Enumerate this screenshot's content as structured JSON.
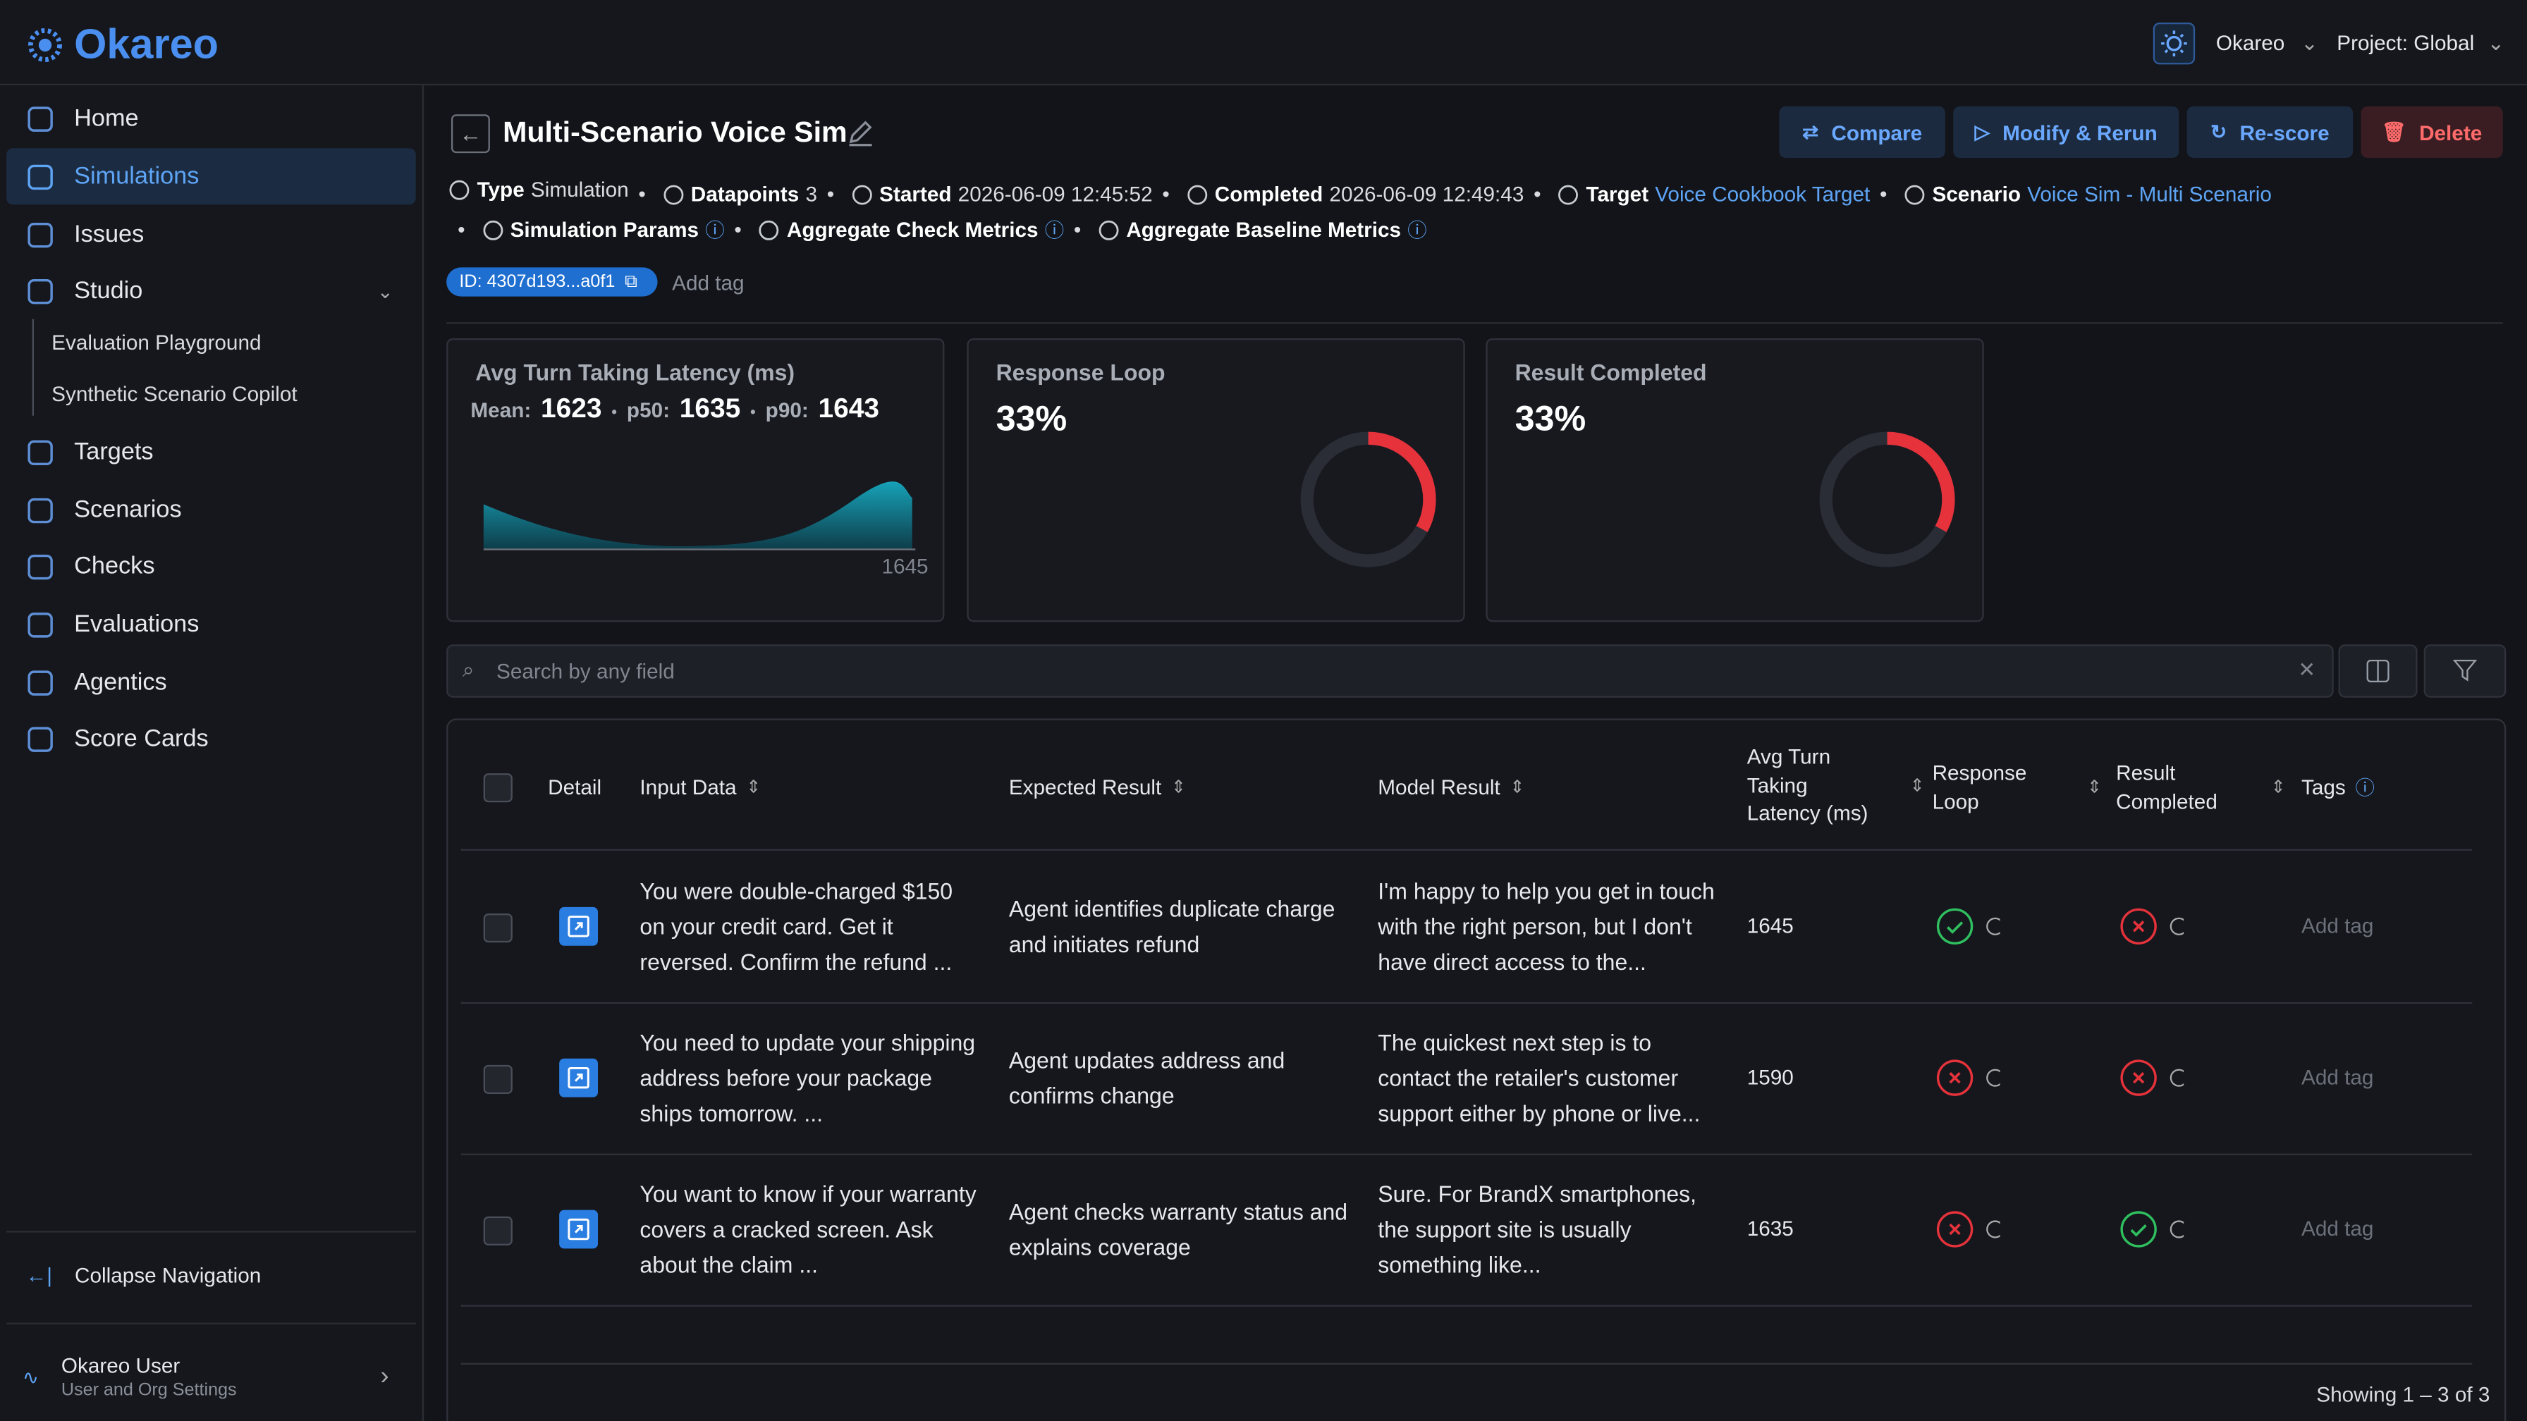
{
  "app": {
    "brand": "Okareo",
    "user_menu": "Okareo",
    "project": "Project: Global"
  },
  "nav": {
    "items": [
      "Home",
      "Simulations",
      "Issues",
      "Studio",
      "Evaluation Playground",
      "Synthetic Scenario Copilot",
      "Targets",
      "Scenarios",
      "Checks",
      "Evaluations",
      "Agentics",
      "Score Cards"
    ],
    "active": "Simulations",
    "collapse": "Collapse Navigation",
    "user_name": "Okareo User",
    "user_sub": "User and Org Settings"
  },
  "header": {
    "title": "Multi-Scenario Voice Sim",
    "actions": [
      "Compare",
      "Modify & Rerun",
      "Re-score",
      "Delete"
    ]
  },
  "meta": [
    {
      "label": "Type",
      "value": "Simulation"
    },
    {
      "label": "Datapoints",
      "value": 3
    },
    {
      "label": "Started",
      "value": "2026-06-09 12:45:52"
    },
    {
      "label": "Completed",
      "value": "2026-06-09 12:49:43"
    },
    {
      "label": "Target",
      "value": "Voice Cookbook Target",
      "link": true
    },
    {
      "label": "Scenario",
      "value": "Voice Sim - Multi Scenario",
      "link": true
    },
    {
      "label": "Simulation Params",
      "info": true
    },
    {
      "label": "Aggregate Check Metrics",
      "info": true
    },
    {
      "label": "Aggregate Baseline Metrics",
      "info": true
    }
  ],
  "tags": {
    "id": "ID: 4307d193...a0f1",
    "add": "Add tag"
  },
  "cards": [
    {
      "title": "Avg Turn Taking Latency (ms)",
      "stats": [
        {
          "label": "Mean:",
          "value": 1623
        },
        {
          "label": "p50:",
          "value": 1635
        },
        {
          "label": "p90:",
          "value": 1643
        }
      ],
      "axis_label": 1645
    },
    {
      "title": "Response Loop",
      "value": 33,
      "value_label": "33%"
    },
    {
      "title": "Result Completed",
      "value": 33,
      "value_label": "33%"
    }
  ],
  "search": {
    "placeholder": "Search by any field"
  },
  "table": {
    "columns": [
      "Detail",
      "Input Data",
      "Expected Result",
      "Model Result",
      "Avg Turn Taking Latency (ms)",
      "Response Loop",
      "Result Completed",
      "Tags"
    ],
    "rows": [
      {
        "input": "You were double-charged $150 on your credit card. Get it reversed. Confirm the refund ...",
        "expected": "Agent identifies duplicate charge and initiates refund",
        "model": "I'm happy to help you get in touch with the right person, but I don't have direct access to the...",
        "latency": 1645,
        "response_loop": true,
        "result_completed": false,
        "tags": "Add tag"
      },
      {
        "input": "You need to update your shipping address before your package ships tomorrow. ...",
        "expected": "Agent updates address and confirms change",
        "model": "The quickest next step is to contact the retailer's customer support either by phone or live...",
        "latency": 1590,
        "response_loop": false,
        "result_completed": false,
        "tags": "Add tag"
      },
      {
        "input": "You want to know if your warranty covers a cracked screen. Ask about the claim ...",
        "expected": "Agent checks warranty status and explains coverage",
        "model": "Sure. For BrandX smartphones, the support site is usually something like...",
        "latency": 1635,
        "response_loop": false,
        "result_completed": true,
        "tags": "Add tag"
      }
    ],
    "footer": "Showing 1 – 3 of 3"
  }
}
